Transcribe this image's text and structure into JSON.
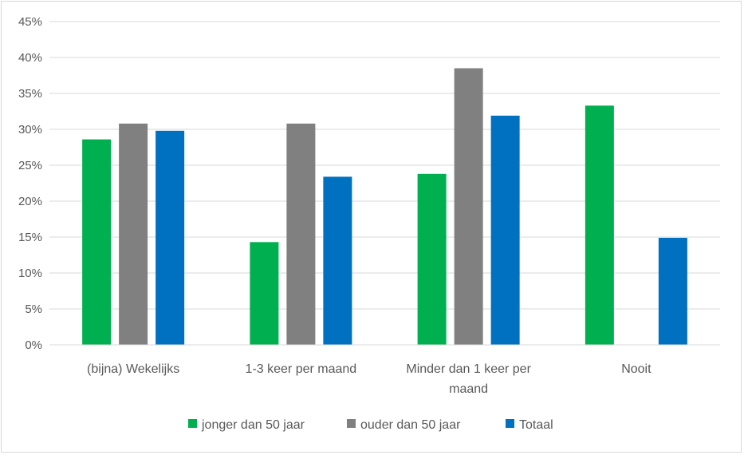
{
  "chart_data": {
    "type": "bar",
    "title": "",
    "xlabel": "",
    "ylabel": "",
    "categories": [
      [
        "(bijna) Wekelijks"
      ],
      [
        "1-3 keer per maand"
      ],
      [
        "Minder dan 1 keer per",
        "maand"
      ],
      [
        "Nooit"
      ]
    ],
    "series": [
      {
        "name": "jonger dan 50 jaar",
        "color": "#00b050",
        "values": [
          28.6,
          14.3,
          23.8,
          33.3
        ]
      },
      {
        "name": "ouder dan 50 jaar",
        "color": "#808080",
        "values": [
          30.8,
          30.8,
          38.5,
          0
        ]
      },
      {
        "name": "Totaal",
        "color": "#0070c0",
        "values": [
          29.8,
          23.4,
          31.9,
          14.9
        ]
      }
    ],
    "ylim": [
      0,
      45
    ],
    "y_ticks": [
      "0%",
      "5%",
      "10%",
      "15%",
      "20%",
      "25%",
      "30%",
      "35%",
      "40%",
      "45%"
    ],
    "grid": true,
    "legend_position": "bottom"
  }
}
